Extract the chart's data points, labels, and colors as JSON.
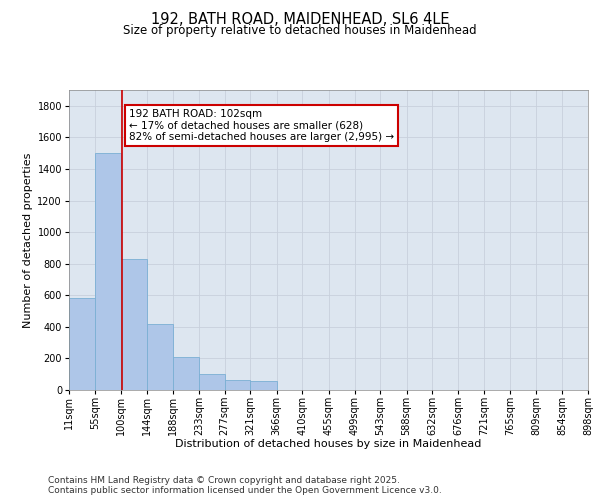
{
  "title_line1": "192, BATH ROAD, MAIDENHEAD, SL6 4LE",
  "title_line2": "Size of property relative to detached houses in Maidenhead",
  "xlabel": "Distribution of detached houses by size in Maidenhead",
  "ylabel": "Number of detached properties",
  "bin_edges": [
    11,
    55,
    100,
    144,
    188,
    233,
    277,
    321,
    366,
    410,
    455,
    499,
    543,
    588,
    632,
    676,
    721,
    765,
    809,
    854,
    898
  ],
  "bar_heights": [
    580,
    1500,
    830,
    420,
    210,
    100,
    65,
    60,
    0,
    0,
    0,
    0,
    0,
    0,
    0,
    0,
    0,
    0,
    0,
    0
  ],
  "bar_color": "#aec6e8",
  "bar_edgecolor": "#7aafd4",
  "x_tick_labels": [
    "11sqm",
    "55sqm",
    "100sqm",
    "144sqm",
    "188sqm",
    "233sqm",
    "277sqm",
    "321sqm",
    "366sqm",
    "410sqm",
    "455sqm",
    "499sqm",
    "543sqm",
    "588sqm",
    "632sqm",
    "676sqm",
    "721sqm",
    "765sqm",
    "809sqm",
    "854sqm",
    "898sqm"
  ],
  "ylim": [
    0,
    1900
  ],
  "yticks": [
    0,
    200,
    400,
    600,
    800,
    1000,
    1200,
    1400,
    1600,
    1800
  ],
  "property_size": 102,
  "vline_color": "#cc0000",
  "annotation_text": "192 BATH ROAD: 102sqm\n← 17% of detached houses are smaller (628)\n82% of semi-detached houses are larger (2,995) →",
  "annotation_box_edgecolor": "#cc0000",
  "annotation_box_facecolor": "#ffffff",
  "grid_color": "#c8d0dc",
  "bg_color": "#dde6f0",
  "footer_line1": "Contains HM Land Registry data © Crown copyright and database right 2025.",
  "footer_line2": "Contains public sector information licensed under the Open Government Licence v3.0.",
  "title_fontsize": 10.5,
  "subtitle_fontsize": 8.5,
  "axis_label_fontsize": 8,
  "tick_fontsize": 7,
  "annot_fontsize": 7.5,
  "footer_fontsize": 6.5
}
